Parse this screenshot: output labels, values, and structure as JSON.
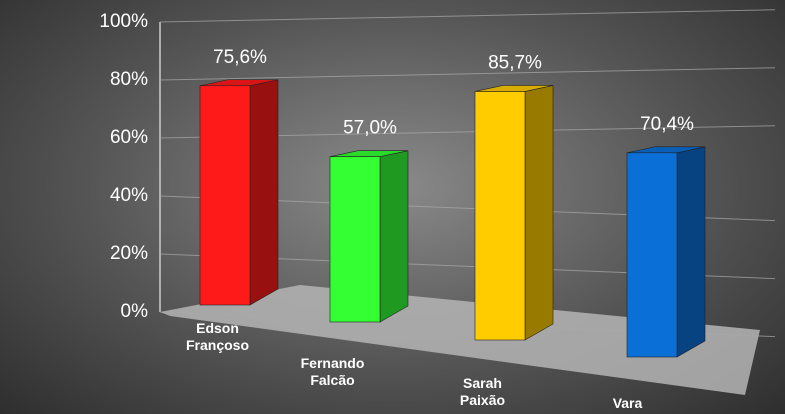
{
  "chart_data": {
    "type": "bar3d",
    "categories": [
      "Edson Françoso",
      "Fernando Falcão",
      "Sarah Paixão",
      "Vara"
    ],
    "values": [
      75.6,
      57.0,
      85.7,
      70.4
    ],
    "value_labels": [
      "75,6%",
      "57,0%",
      "85,7%",
      "70,4%"
    ],
    "colors": [
      "#ff1a1a",
      "#33ff33",
      "#ffcc00",
      "#0a6fd6"
    ],
    "ylim": [
      0,
      100
    ],
    "yticks": [
      {
        "value": 0,
        "label": "0%"
      },
      {
        "value": 20,
        "label": "20%"
      },
      {
        "value": 40,
        "label": "40%"
      },
      {
        "value": 60,
        "label": "60%"
      },
      {
        "value": 80,
        "label": "80%"
      },
      {
        "value": 100,
        "label": "100%"
      }
    ],
    "grid": true
  }
}
